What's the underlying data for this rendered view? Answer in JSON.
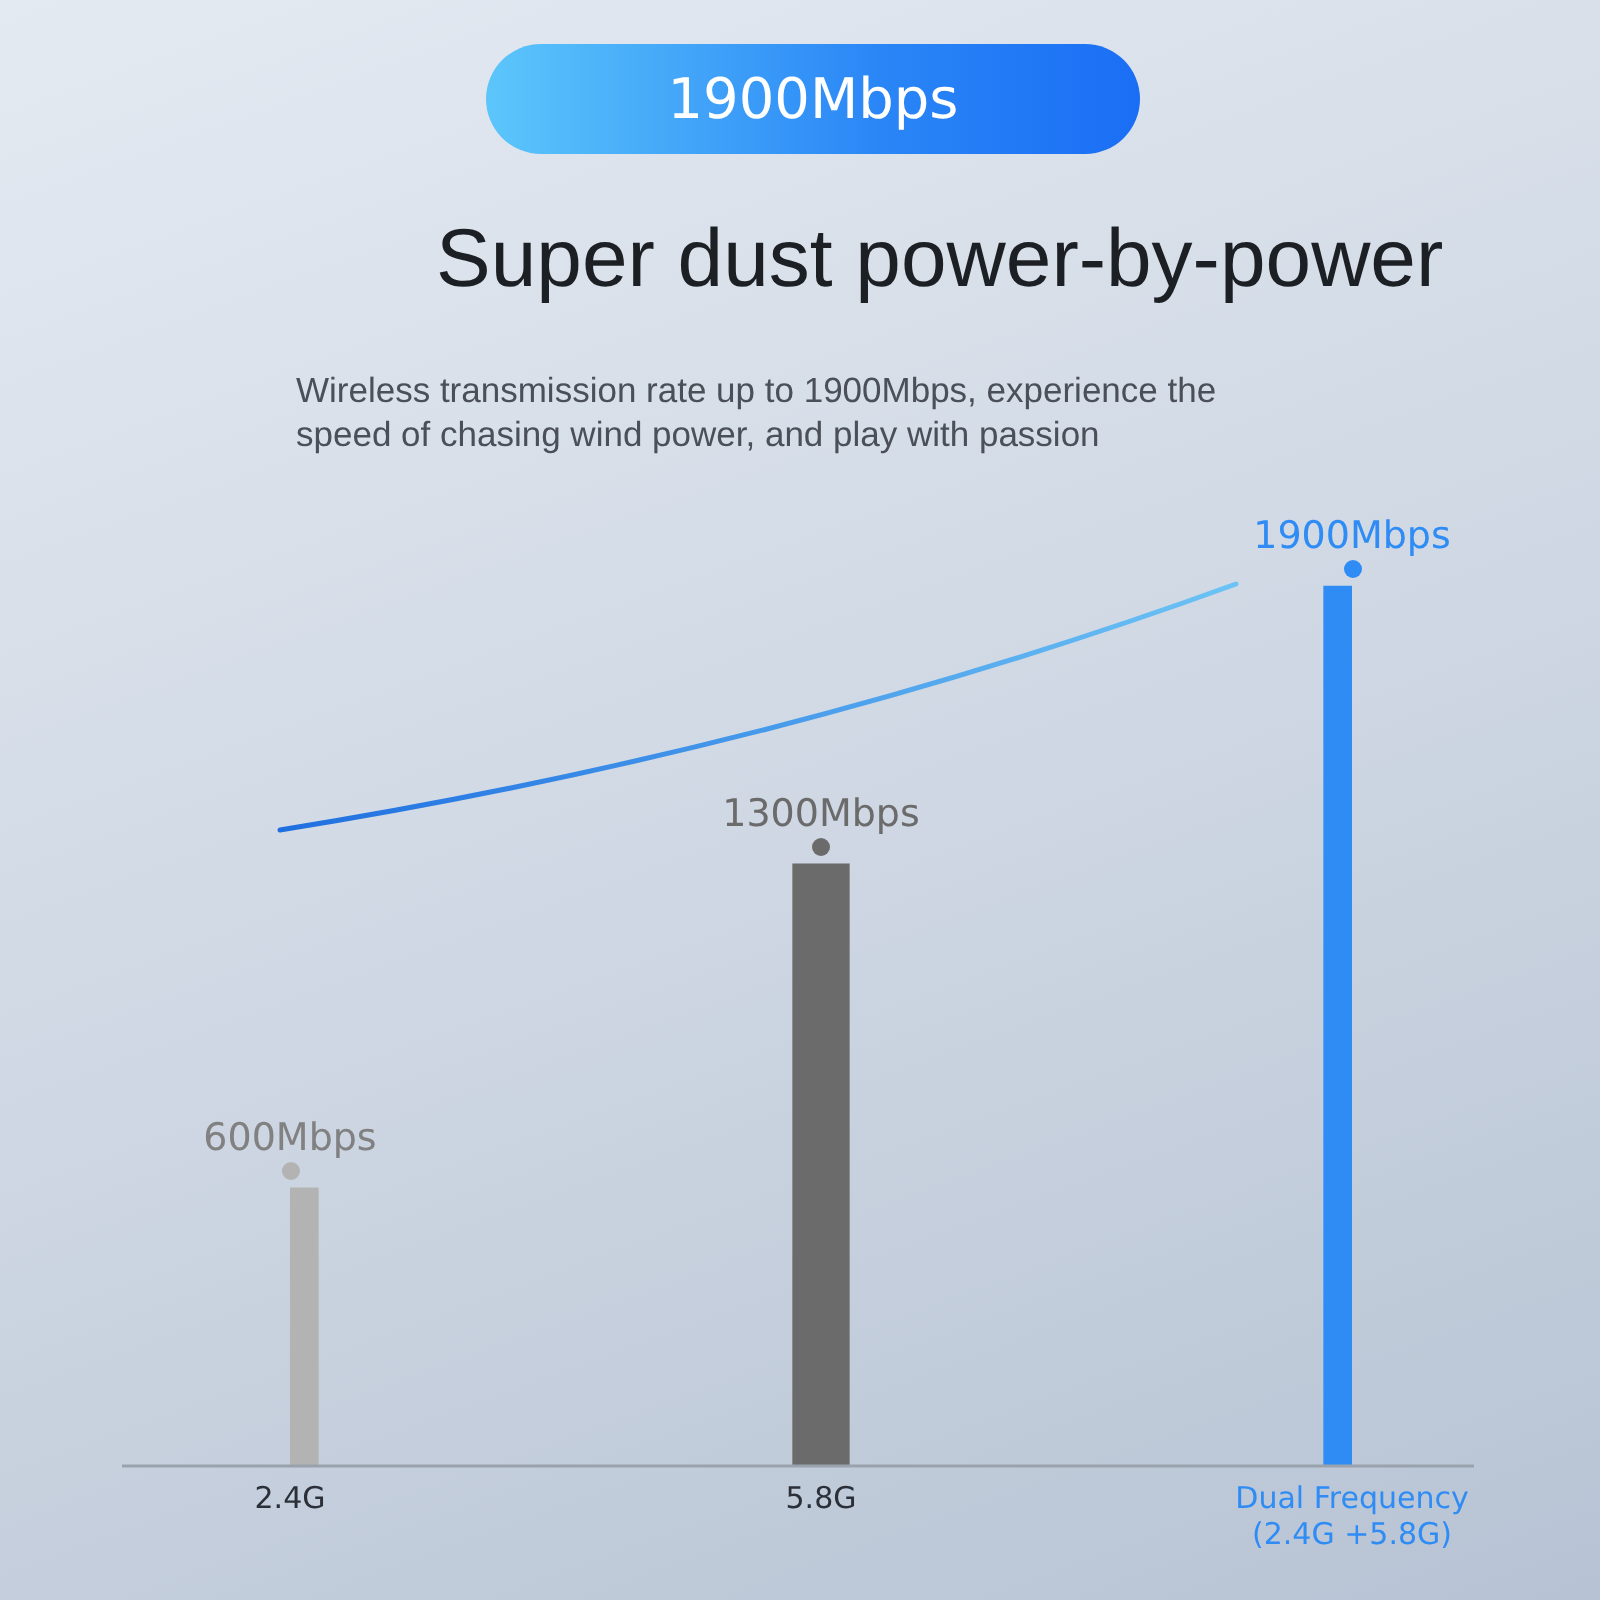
{
  "chart_data": {
    "type": "bar",
    "title": "Super dust power-by-power",
    "subtitle": "Wireless transmission rate up to 1900Mbps, experience the speed of chasing wind power, and play with passion",
    "annotations": [
      "1900Mbps"
    ],
    "categories": [
      "2.4G",
      "5.8G",
      "Dual Frequency (2.4G +5.8G)"
    ],
    "values": [
      600,
      1300,
      1900
    ],
    "colors": [
      "#b3b3b3",
      "#6b6b6b",
      "#2f8cf5"
    ],
    "value_labels": [
      "600Mbps",
      "1300Mbps",
      "1900Mbps"
    ]
  }
}
